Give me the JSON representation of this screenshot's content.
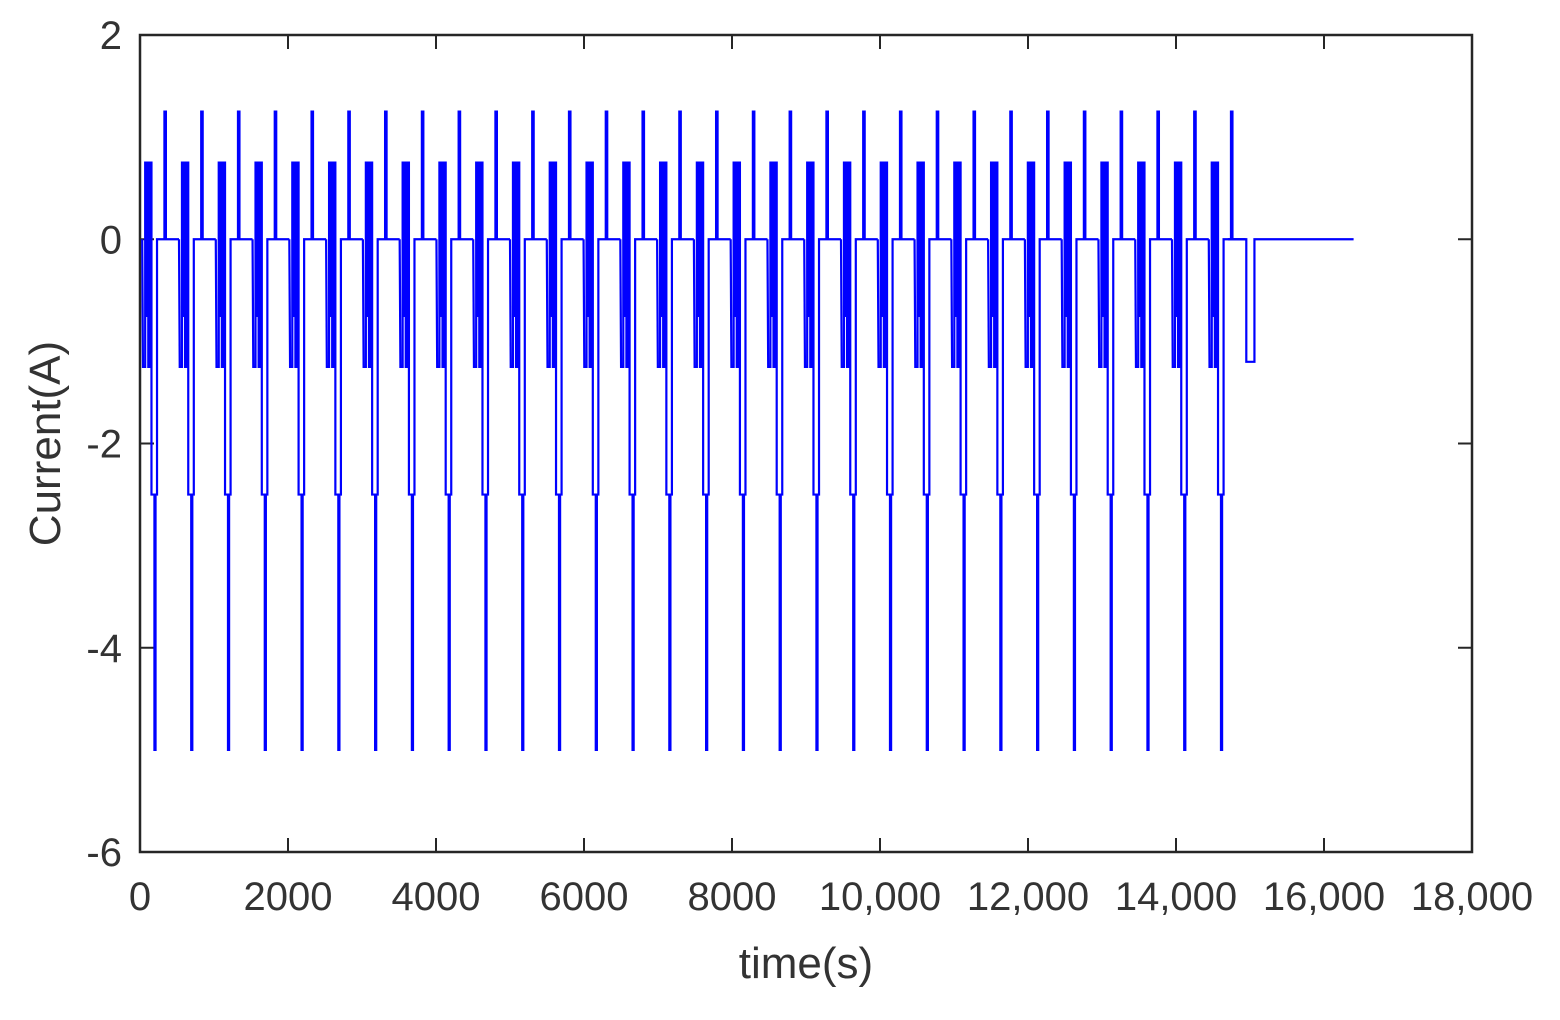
{
  "chart_data": {
    "type": "line",
    "title": "",
    "xlabel": "time(s)",
    "ylabel": "Current(A)",
    "xlim": [
      0,
      18000
    ],
    "ylim": [
      -6,
      2
    ],
    "x_ticks": [
      0,
      2000,
      4000,
      6000,
      8000,
      10000,
      12000,
      14000,
      16000,
      18000
    ],
    "x_tick_labels": [
      "0",
      "2000",
      "4000",
      "6000",
      "8000",
      "10,000",
      "12,000",
      "14,000",
      "16,000",
      "18,000"
    ],
    "y_ticks": [
      -6,
      -4,
      -2,
      0
    ],
    "y_tick_labels": [
      "-6",
      "-4",
      "-2",
      "0",
      "2"
    ],
    "y_tick_values_all": [
      -6,
      -4,
      -2,
      0,
      2
    ],
    "grid": false,
    "legend": "none",
    "series": [
      {
        "color": "#0000ff",
        "pulse_cycles": {
          "count": 30,
          "first_start": 30,
          "period": 497,
          "steps": [
            {
              "t": 0,
              "i": 0
            },
            {
              "t": 10,
              "i": -1.25
            },
            {
              "t": 40,
              "i": -1.25
            },
            {
              "t": 40,
              "i": 0.75
            },
            {
              "t": 55,
              "i": 0.75
            },
            {
              "t": 55,
              "i": -0.75
            },
            {
              "t": 70,
              "i": -0.75
            },
            {
              "t": 70,
              "i": 0.75
            },
            {
              "t": 82,
              "i": 0.75
            },
            {
              "t": 82,
              "i": -1.25
            },
            {
              "t": 100,
              "i": -1.25
            },
            {
              "t": 100,
              "i": 0.75
            },
            {
              "t": 125,
              "i": 0.75
            },
            {
              "t": 125,
              "i": -2.5
            },
            {
              "t": 165,
              "i": -2.5
            },
            {
              "t": 165,
              "i": -5.0
            },
            {
              "t": 180,
              "i": -5.0
            },
            {
              "t": 180,
              "i": -2.5
            },
            {
              "t": 200,
              "i": -2.5
            },
            {
              "t": 200,
              "i": 0
            },
            {
              "t": 300,
              "i": 0
            },
            {
              "t": 300,
              "i": 1.25
            },
            {
              "t": 320,
              "i": 1.25
            },
            {
              "t": 320,
              "i": 0
            },
            {
              "t": 497,
              "i": 0
            }
          ]
        },
        "tail": [
          {
            "x": 14700,
            "y": 0
          },
          {
            "x": 14950,
            "y": 0
          },
          {
            "x": 14950,
            "y": -1.2
          },
          {
            "x": 15060,
            "y": -1.2
          },
          {
            "x": 15060,
            "y": 0
          },
          {
            "x": 16400,
            "y": 0
          }
        ]
      }
    ]
  }
}
